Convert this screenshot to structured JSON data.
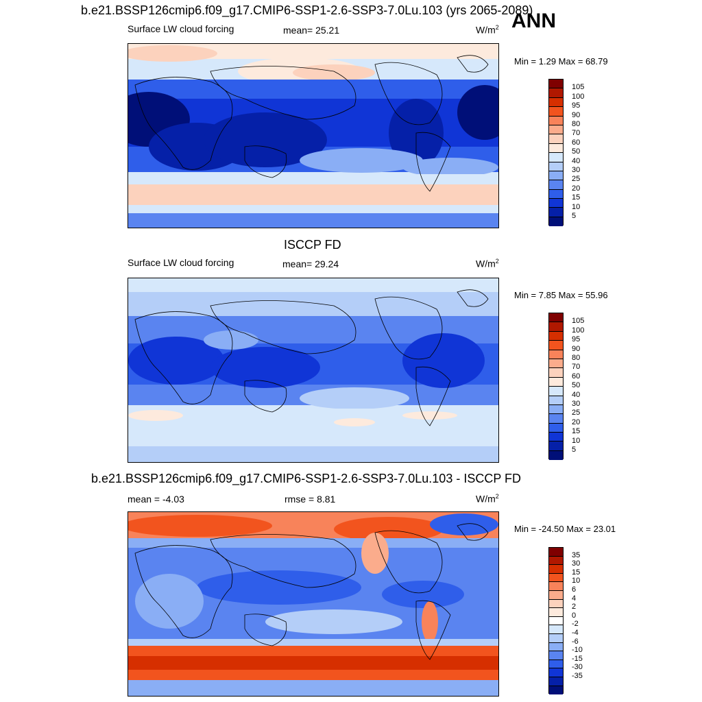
{
  "panel1": {
    "title": "b.e21.BSSP126cmip6.f09_g17.CMIP6-SSP1-2.6-SSP3-7.0Lu.103 (yrs 2065-2089)",
    "season": "ANN",
    "left_label": "Surface LW cloud forcing",
    "center_label": "mean=  25.21",
    "units": "W/m",
    "units_exp": "2",
    "minmax": "Min =   1.29 Max =  68.79",
    "colorbar_labels": [
      "105",
      "100",
      "95",
      "90",
      "80",
      "70",
      "60",
      "50",
      "40",
      "30",
      "25",
      "20",
      "15",
      "10",
      "5"
    ]
  },
  "panel2": {
    "title": "ISCCP FD",
    "left_label": "Surface LW cloud forcing",
    "center_label": "mean=  29.24",
    "units": "W/m",
    "units_exp": "2",
    "minmax": "Min =   7.85 Max =  55.96",
    "colorbar_labels": [
      "105",
      "100",
      "95",
      "90",
      "80",
      "70",
      "60",
      "50",
      "40",
      "30",
      "25",
      "20",
      "15",
      "10",
      "5"
    ]
  },
  "panel3": {
    "title": "b.e21.BSSP126cmip6.f09_g17.CMIP6-SSP1-2.6-SSP3-7.0Lu.103 - ISCCP FD",
    "left_label": "mean =  -4.03",
    "center_label": "rmse =   8.81",
    "units": "W/m",
    "units_exp": "2",
    "minmax": "Min = -24.50 Max =  23.01",
    "colorbar_labels": [
      "35",
      "30",
      "15",
      "10",
      "6",
      "4",
      "2",
      "0",
      "-2",
      "-4",
      "-6",
      "-10",
      "-15",
      "-30",
      "-35"
    ]
  },
  "colors": {
    "abs_scale": [
      "#7f0000",
      "#b01800",
      "#d62f00",
      "#f2541e",
      "#f8835a",
      "#fbac8c",
      "#fcd2bd",
      "#fdeadd",
      "#d6e8fb",
      "#b4cef8",
      "#8aaef5",
      "#5a84f0",
      "#2f5eea",
      "#1035d6",
      "#0520a8",
      "#000f78"
    ],
    "diff_scale": [
      "#7f0000",
      "#b01800",
      "#d62f00",
      "#f2541e",
      "#f8835a",
      "#fbac8c",
      "#fcd2bd",
      "#fdeadd",
      "#ffffff",
      "#d6e8fb",
      "#b4cef8",
      "#8aaef5",
      "#5a84f0",
      "#2f5eea",
      "#1035d6",
      "#0520a8",
      "#000f78"
    ]
  }
}
